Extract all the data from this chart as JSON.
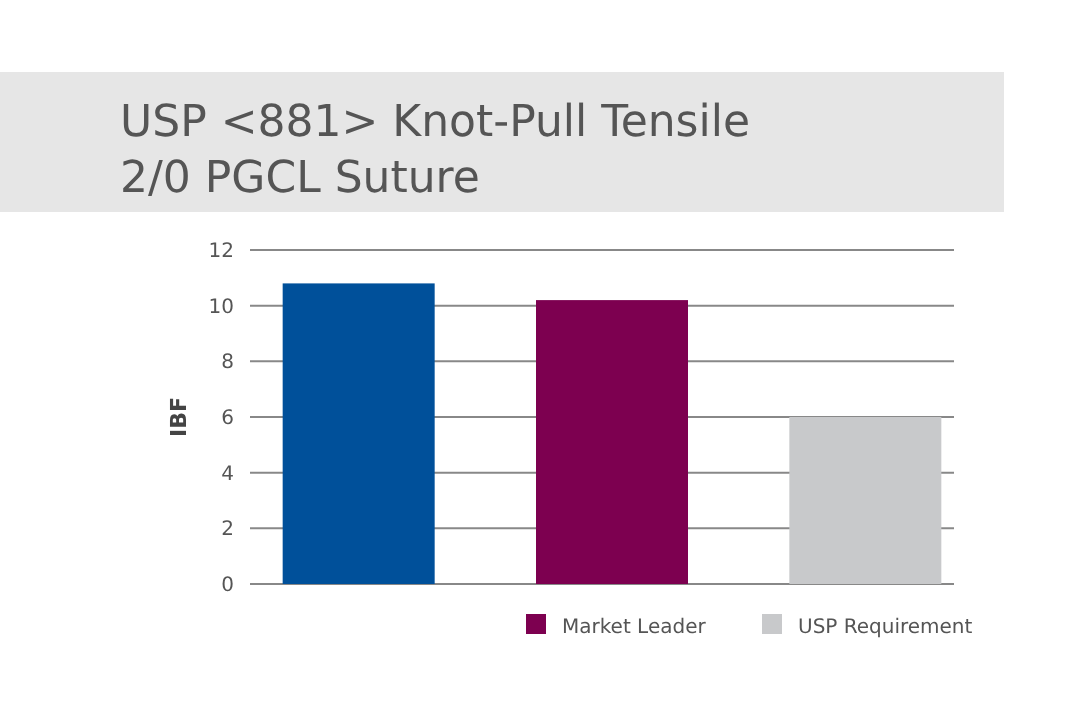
{
  "chart_data": {
    "type": "bar",
    "title": "USP <881> Knot-Pull Tensile\n2/0 PGCL Suture",
    "ylabel": "IBF",
    "categories": [
      null,
      null,
      null
    ],
    "series": [
      {
        "color": "#00509a",
        "values": [
          10.8,
          null,
          null
        ]
      },
      {
        "name": "Market Leader",
        "color": "#7d0050",
        "values": [
          null,
          10.2,
          null
        ]
      },
      {
        "name": "USP Requirement",
        "color": "#c8c9cb",
        "values": [
          null,
          null,
          6
        ]
      }
    ],
    "ylim": [
      0,
      12
    ],
    "yticks": [
      0,
      2,
      4,
      6,
      8,
      10,
      12
    ],
    "grid": "y",
    "legend": "bottom"
  }
}
